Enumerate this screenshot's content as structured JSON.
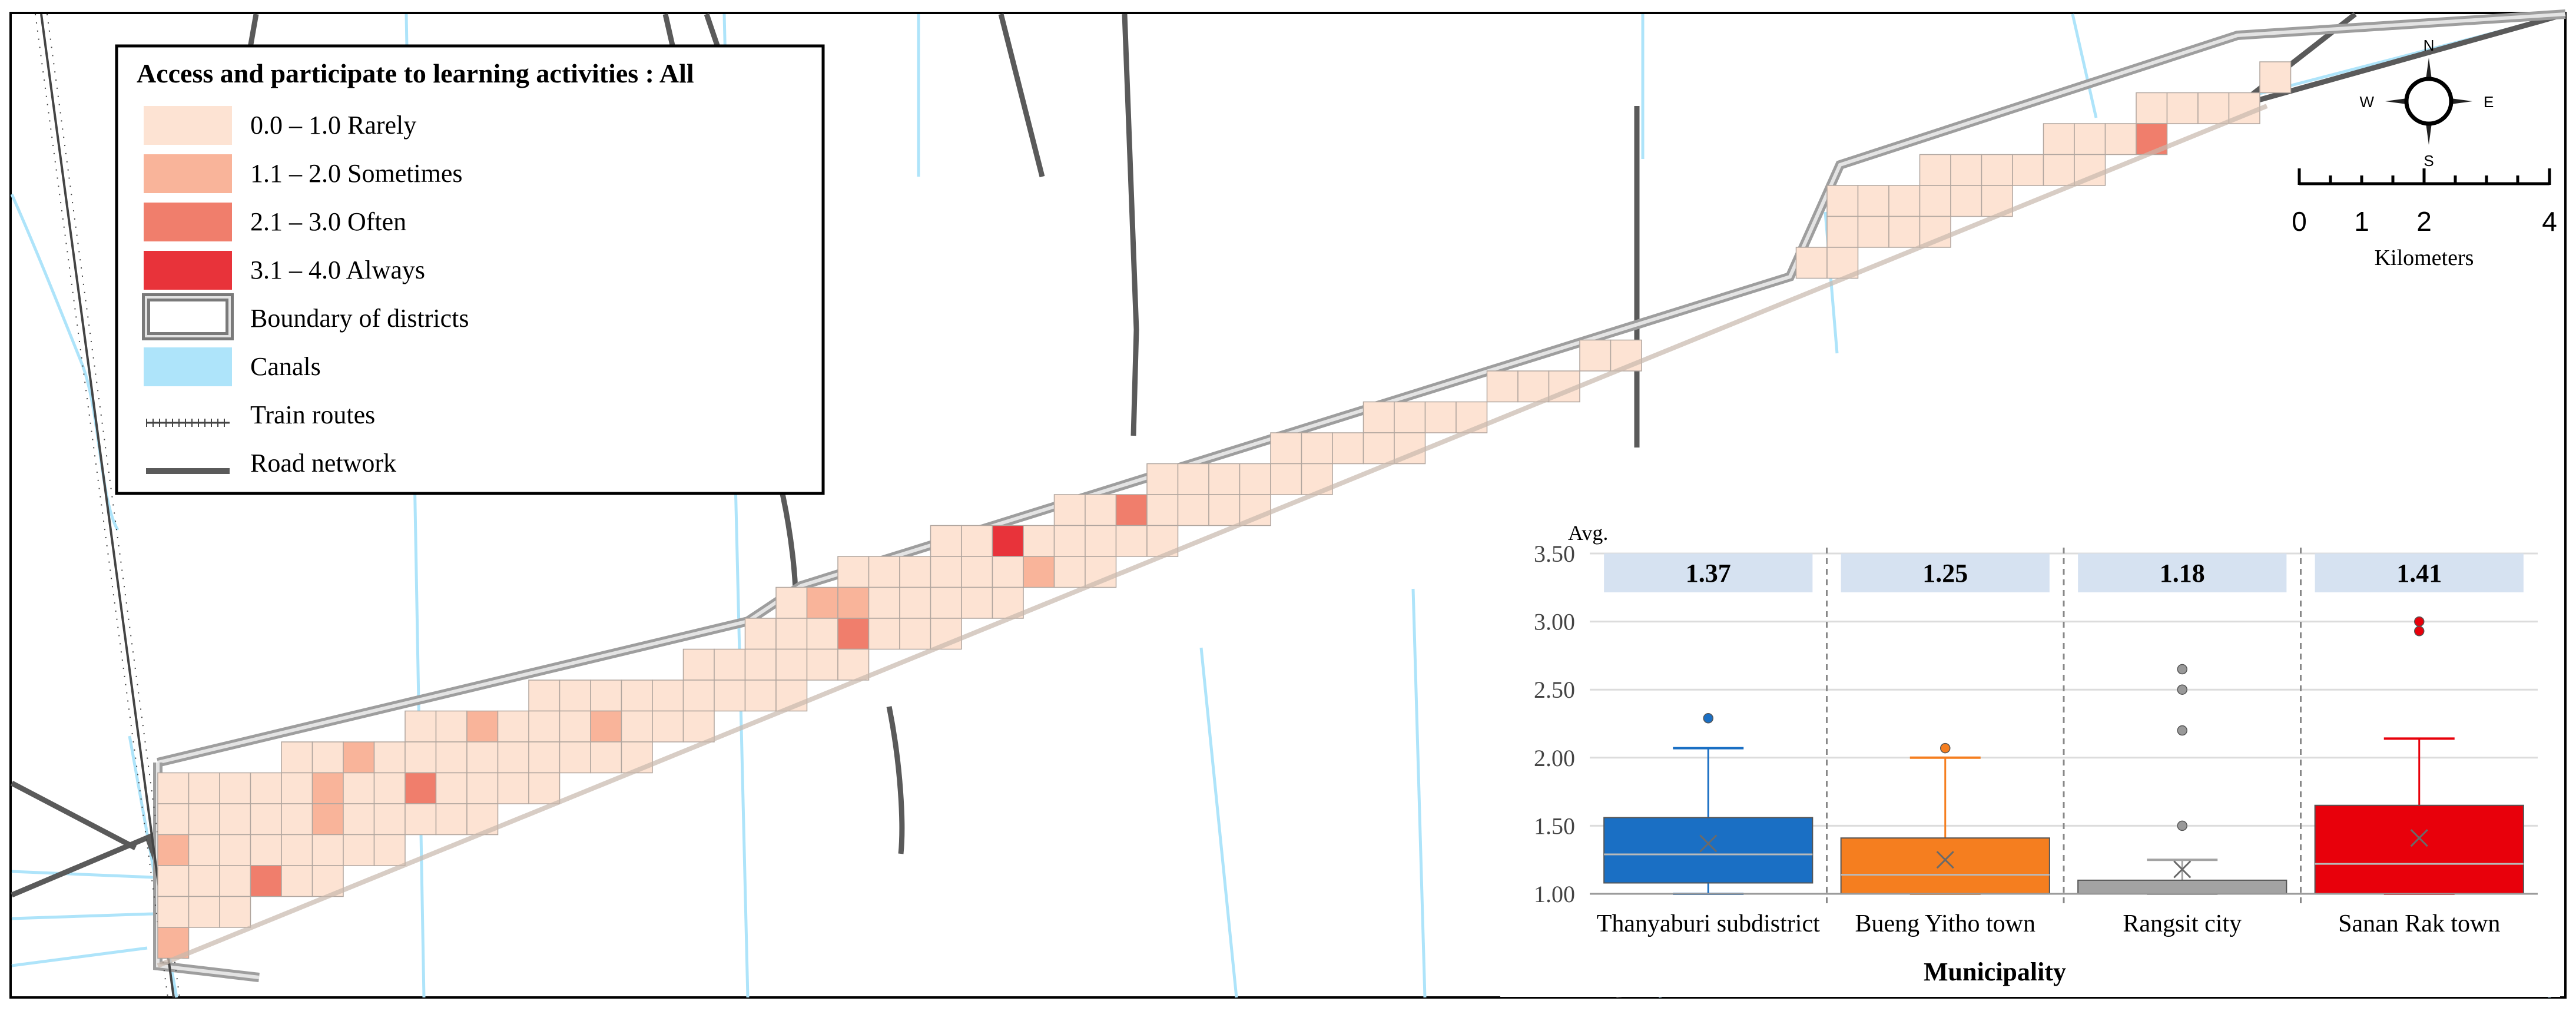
{
  "legend": {
    "title": "Access and participate to learning activities : All",
    "items": [
      {
        "label": "0.0 – 1.0 Rarely",
        "color": "#fde3d3"
      },
      {
        "label": "1.1 – 2.0 Sometimes",
        "color": "#f9b49a"
      },
      {
        "label": "2.1 – 3.0 Often",
        "color": "#f07e6c"
      },
      {
        "label": "3.1 – 4.0 Always",
        "color": "#e8333a"
      },
      {
        "label": "Boundary of districts",
        "color": "#9e9e9e"
      },
      {
        "label": "Canals",
        "color": "#aee4fa"
      },
      {
        "label": "Train routes",
        "color": "#444444"
      },
      {
        "label": "Road network",
        "color": "#5a5a5a"
      }
    ]
  },
  "compass": {
    "n": "N",
    "s": "S",
    "e": "E",
    "w": "W"
  },
  "scale_bar": {
    "ticks": [
      "0",
      "1",
      "2",
      "4"
    ],
    "unit": "Kilometers"
  },
  "chart_data": {
    "type": "boxplot",
    "ylabel": "Avg.",
    "xlabel": "Municipality",
    "ylim": [
      1.0,
      3.5
    ],
    "yticks": [
      "3.50",
      "3.00",
      "2.50",
      "2.00",
      "1.50",
      "1.00"
    ],
    "series": [
      {
        "name": "Thanyaburi subdistrict",
        "avg_label": "1.37",
        "mean": 1.37,
        "min": 1.0,
        "q1": 1.08,
        "median": 1.29,
        "q3": 1.56,
        "max": 2.07,
        "outliers": [
          2.29
        ],
        "color": "#1a6fc4"
      },
      {
        "name": "Bueng Yitho town",
        "avg_label": "1.25",
        "mean": 1.25,
        "min": 1.0,
        "q1": 1.0,
        "median": 1.14,
        "q3": 1.41,
        "max": 2.0,
        "outliers": [
          2.07
        ],
        "color": "#f57e1f"
      },
      {
        "name": "Rangsit city",
        "avg_label": "1.18",
        "mean": 1.18,
        "min": 1.0,
        "q1": 1.0,
        "median": 1.0,
        "q3": 1.1,
        "max": 1.25,
        "outliers": [
          1.5,
          2.2,
          2.5,
          2.65
        ],
        "color": "#a3a3a3"
      },
      {
        "name": "Sanan Rak town",
        "avg_label": "1.41",
        "mean": 1.41,
        "min": 1.0,
        "q1": 1.0,
        "median": 1.22,
        "q3": 1.65,
        "max": 2.14,
        "outliers": [
          2.93,
          3.0
        ],
        "color": "#e8000b"
      }
    ]
  }
}
